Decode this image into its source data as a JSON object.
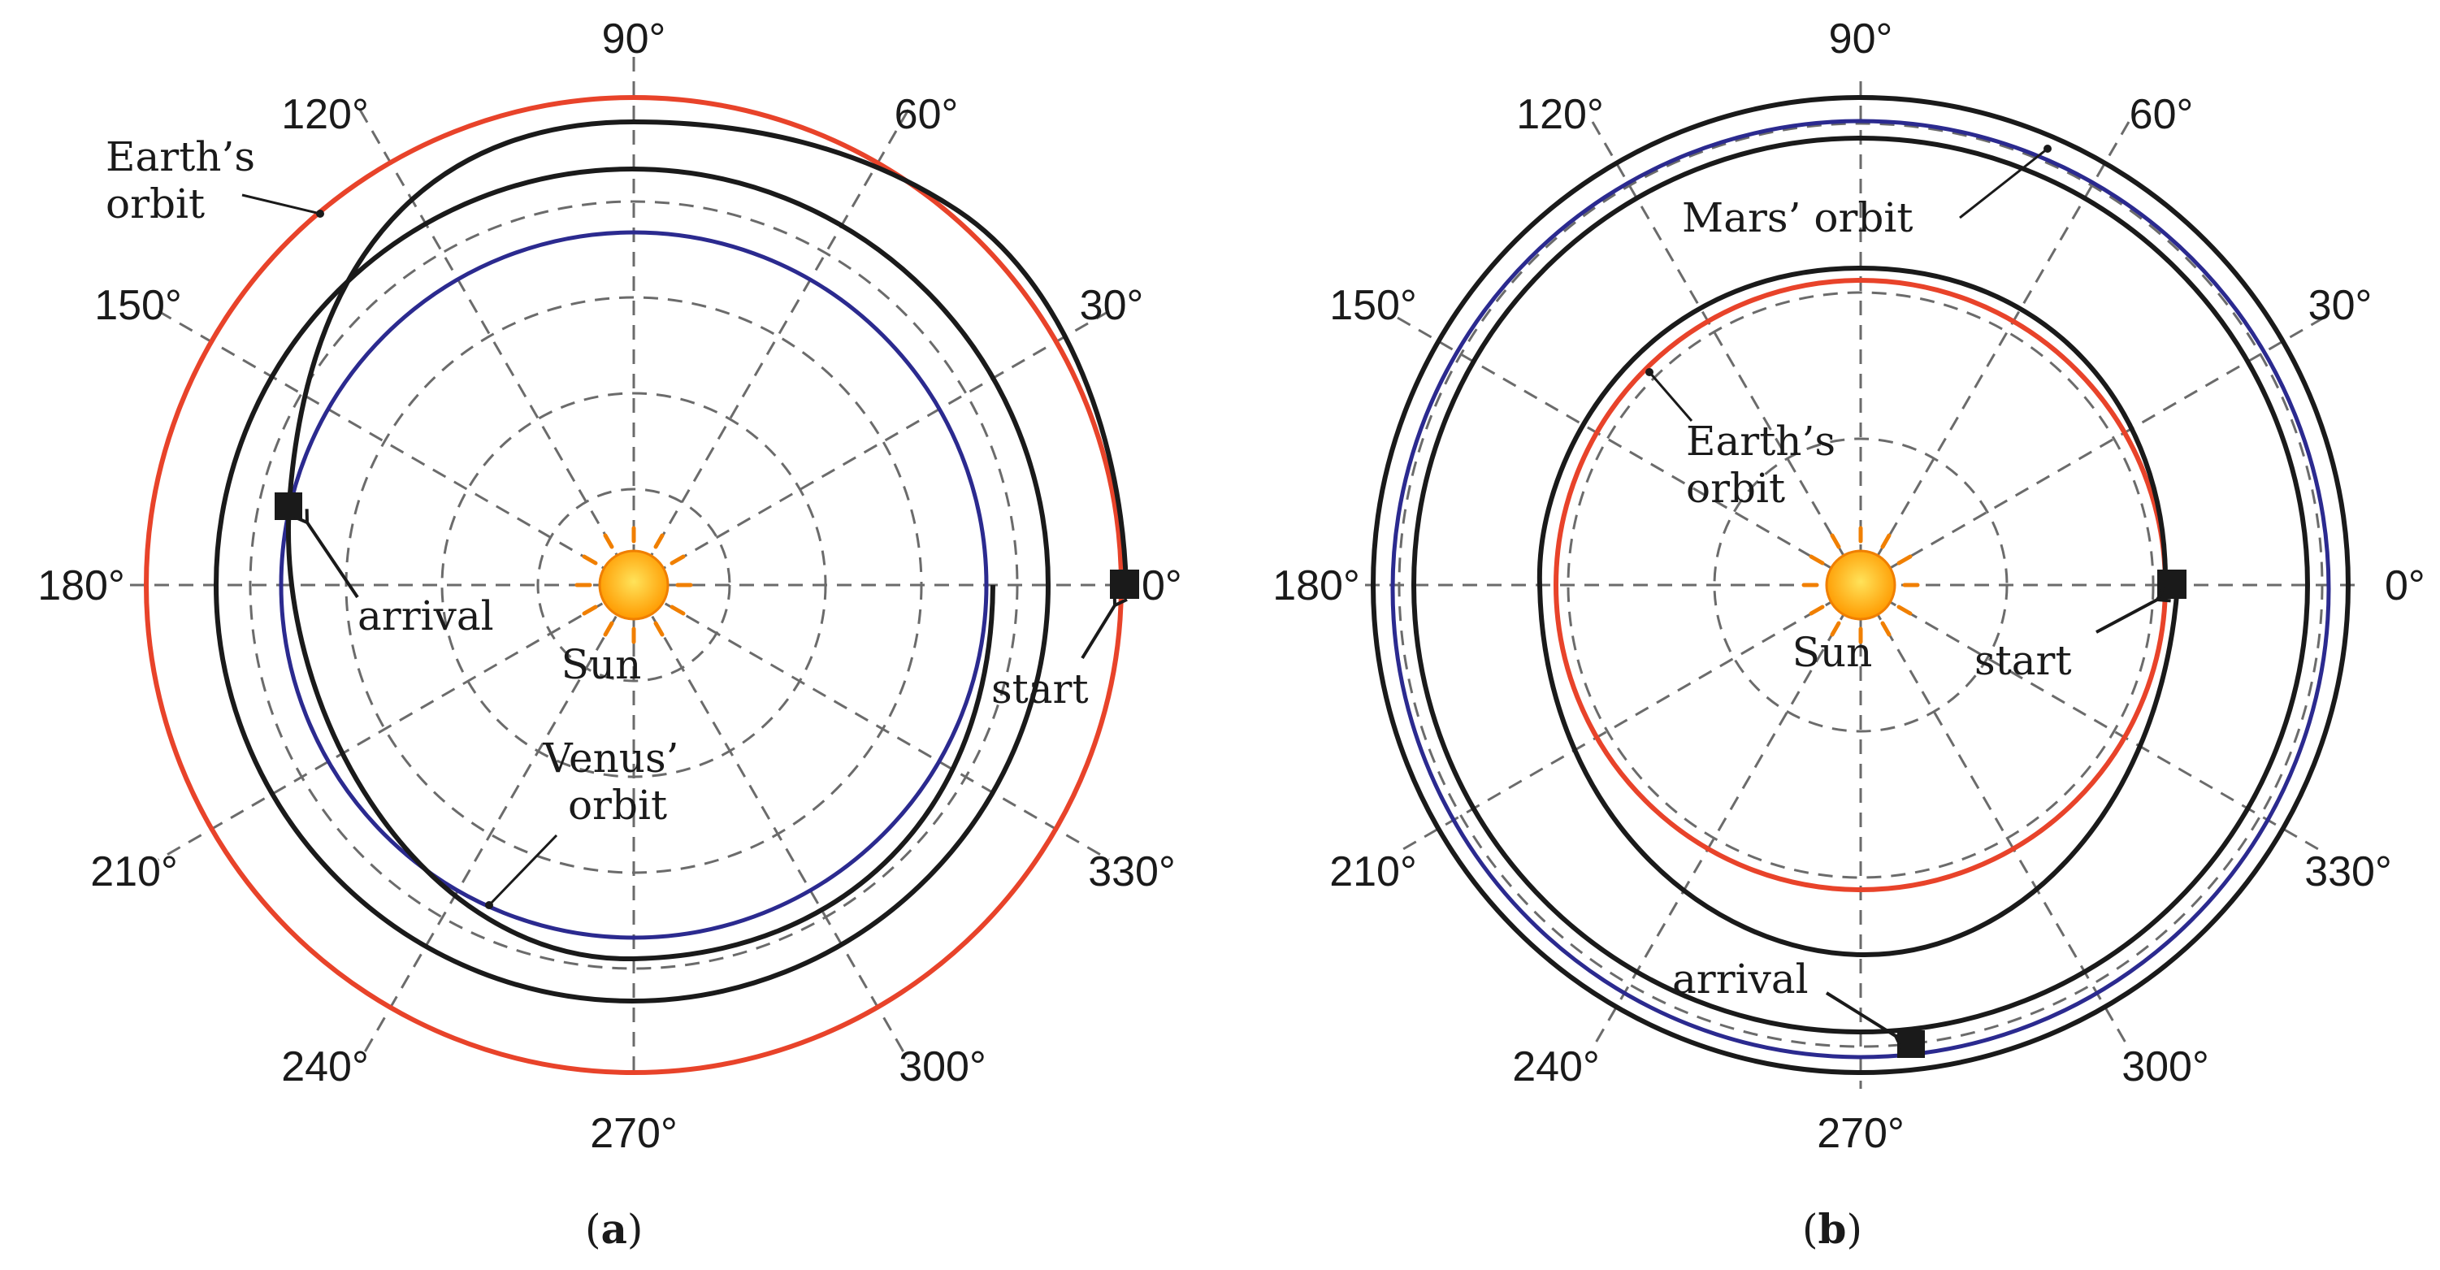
{
  "panels": [
    {
      "id": "a",
      "caption": {
        "open": "(",
        "letter": "a",
        "close": ")"
      },
      "angle_labels": [
        "0°",
        "30°",
        "60°",
        "90°",
        "120°",
        "150°",
        "180°",
        "210°",
        "240°",
        "270°",
        "300°",
        "330°"
      ],
      "sun_label": "Sun",
      "labels": {
        "earth_orbit": [
          "Earth’s",
          "orbit"
        ],
        "venus_orbit": [
          "Venus’",
          "orbit"
        ],
        "arrival": "arrival",
        "start": "start"
      },
      "orbits": [
        {
          "name": "Earth’s orbit",
          "radius_au": 1.0,
          "color": "#e8432a"
        },
        {
          "name": "Venus’ orbit",
          "radius_au": 0.723,
          "color": "#2b2a8f"
        }
      ],
      "start_angle_deg": 0,
      "arrival_angle_deg": 165
    },
    {
      "id": "b",
      "caption": {
        "open": "(",
        "letter": "b",
        "close": ")"
      },
      "angle_labels": [
        "0°",
        "30°",
        "60°",
        "90°",
        "120°",
        "150°",
        "180°",
        "210°",
        "240°",
        "270°",
        "300°",
        "330°"
      ],
      "sun_label": "Sun",
      "labels": {
        "mars_orbit": "Mars’ orbit",
        "earth_orbit": [
          "Earth’s",
          "orbit"
        ],
        "arrival": "arrival",
        "start": "start"
      },
      "orbits": [
        {
          "name": "Earth’s orbit",
          "radius_au": 1.0,
          "color": "#e8432a"
        },
        {
          "name": "Mars’ orbit",
          "radius_au": 1.524,
          "color": "#2b2a8f"
        }
      ],
      "start_angle_deg": 0,
      "arrival_angle_deg": 275
    }
  ],
  "colors": {
    "earth": "#e8432a",
    "planet2": "#2b2a8f",
    "trajectory": "#1a1a1a",
    "grid": "#6b6b6b",
    "sun_fill": "#ffb000",
    "sun_rays": "#f07f00"
  }
}
